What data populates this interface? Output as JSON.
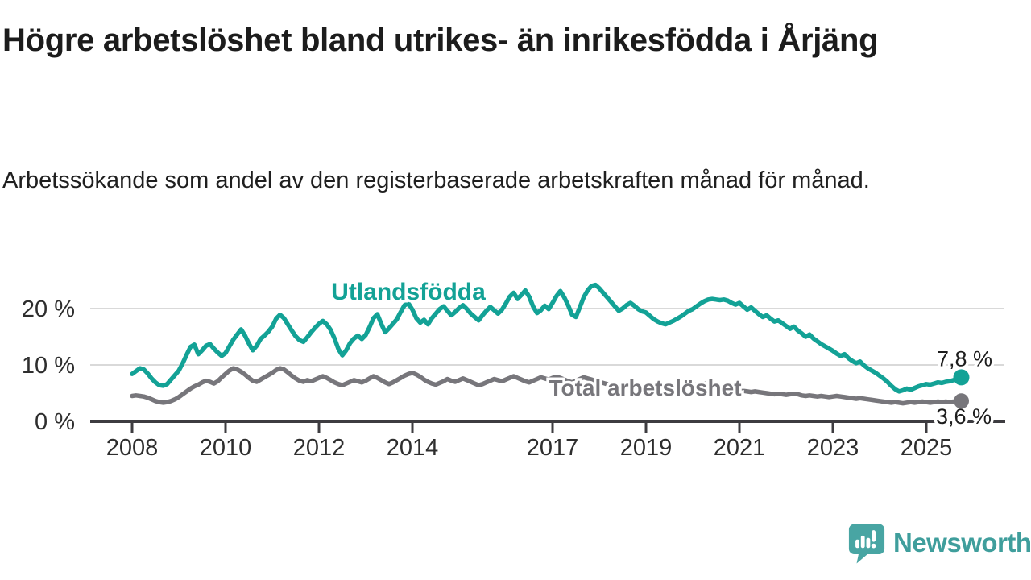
{
  "header": {
    "title": "Högre arbetslöshet bland utrikes- än inrikesfödda i Årjäng",
    "subtitle": "Arbetssökande som andel av den registerbaserade arbetskraften månad för månad."
  },
  "branding": {
    "logo_text": "Newsworthy",
    "logo_text_color": "#3f9e9c",
    "logo_icon_color": "#48a5a3"
  },
  "chart_data": {
    "type": "line",
    "unit": "%",
    "frequency": "monthly",
    "x_start_year": 2008,
    "x_end": "2025 (October)",
    "ylim": [
      0,
      26
    ],
    "grid": "horizontal",
    "x_ticks": [
      {
        "year": 2008,
        "label": "2008"
      },
      {
        "year": 2010,
        "label": "2010"
      },
      {
        "year": 2012,
        "label": "2012"
      },
      {
        "year": 2014,
        "label": "2014"
      },
      {
        "year": 2017,
        "label": "2017"
      },
      {
        "year": 2019,
        "label": "2019"
      },
      {
        "year": 2021,
        "label": "2021"
      },
      {
        "year": 2023,
        "label": "2023"
      },
      {
        "year": 2025,
        "label": "2025"
      }
    ],
    "y_ticks": [
      {
        "value": 0,
        "label": "0 %"
      },
      {
        "value": 10,
        "label": "10 %"
      },
      {
        "value": 20,
        "label": "20 %"
      }
    ],
    "series": [
      {
        "name": "Utlandsfödda",
        "color": "#13a296",
        "end_label": "7,8 %",
        "end_value": 7.8,
        "values": [
          8.4,
          8.9,
          9.4,
          9.2,
          8.5,
          7.6,
          6.9,
          6.4,
          6.3,
          6.6,
          7.4,
          8.2,
          9.0,
          10.3,
          11.8,
          13.2,
          13.6,
          11.9,
          12.6,
          13.4,
          13.7,
          12.9,
          12.2,
          11.6,
          12.1,
          13.3,
          14.5,
          15.4,
          16.3,
          15.2,
          13.8,
          12.6,
          13.4,
          14.6,
          15.2,
          15.9,
          16.8,
          18.2,
          18.9,
          18.3,
          17.2,
          16.1,
          15.1,
          14.4,
          14.1,
          14.9,
          15.8,
          16.6,
          17.3,
          17.8,
          17.2,
          16.2,
          14.7,
          12.8,
          11.7,
          12.6,
          13.9,
          14.7,
          15.2,
          14.6,
          15.3,
          16.7,
          18.3,
          19.0,
          17.3,
          15.8,
          16.5,
          17.3,
          18.1,
          19.4,
          20.6,
          20.9,
          19.8,
          18.3,
          17.5,
          18.0,
          17.2,
          18.3,
          19.1,
          19.9,
          20.4,
          19.6,
          18.8,
          19.4,
          20.1,
          20.6,
          19.9,
          19.1,
          18.5,
          17.9,
          18.8,
          19.6,
          20.3,
          19.7,
          19.1,
          19.8,
          20.9,
          22.1,
          22.8,
          21.7,
          22.4,
          23.2,
          22.1,
          20.4,
          19.2,
          19.7,
          20.5,
          19.9,
          21.0,
          22.2,
          23.1,
          22.0,
          20.6,
          18.9,
          18.5,
          20.2,
          22.0,
          23.2,
          24.0,
          24.2,
          23.6,
          22.8,
          22.0,
          21.2,
          20.4,
          19.6,
          20.0,
          20.6,
          21.0,
          20.5,
          19.9,
          19.5,
          19.3,
          18.7,
          18.1,
          17.7,
          17.4,
          17.2,
          17.5,
          17.8,
          18.2,
          18.6,
          19.1,
          19.6,
          19.9,
          20.4,
          20.9,
          21.3,
          21.6,
          21.7,
          21.6,
          21.5,
          21.6,
          21.4,
          21.0,
          20.7,
          21.0,
          20.4,
          19.8,
          20.2,
          19.6,
          19.0,
          18.5,
          18.8,
          18.2,
          17.7,
          17.9,
          17.4,
          16.9,
          16.4,
          16.8,
          16.1,
          15.6,
          15.0,
          15.4,
          14.7,
          14.2,
          13.7,
          13.3,
          12.9,
          12.5,
          12.0,
          11.6,
          11.9,
          11.2,
          10.7,
          10.3,
          10.6,
          9.9,
          9.4,
          9.0,
          8.6,
          8.1,
          7.6,
          7.0,
          6.3,
          5.7,
          5.3,
          5.5,
          5.8,
          5.6,
          5.9,
          6.2,
          6.4,
          6.6,
          6.5,
          6.7,
          6.9,
          6.8,
          7.0,
          7.1,
          7.3,
          7.5,
          7.8
        ]
      },
      {
        "name": "Total arbetslöshet",
        "color": "#77767b",
        "end_label": "3,6 %",
        "end_value": 3.6,
        "values": [
          4.5,
          4.6,
          4.5,
          4.4,
          4.2,
          3.9,
          3.6,
          3.4,
          3.3,
          3.4,
          3.6,
          3.9,
          4.3,
          4.8,
          5.3,
          5.8,
          6.2,
          6.5,
          6.9,
          7.2,
          7.0,
          6.7,
          7.1,
          7.8,
          8.4,
          9.0,
          9.4,
          9.2,
          8.8,
          8.3,
          7.7,
          7.2,
          7.0,
          7.4,
          7.8,
          8.2,
          8.6,
          9.1,
          9.4,
          9.2,
          8.7,
          8.1,
          7.6,
          7.2,
          7.0,
          7.3,
          7.1,
          7.4,
          7.7,
          8.0,
          7.7,
          7.3,
          6.9,
          6.6,
          6.4,
          6.7,
          7.0,
          7.3,
          7.1,
          6.9,
          7.2,
          7.6,
          8.0,
          7.7,
          7.3,
          6.9,
          6.6,
          6.9,
          7.3,
          7.7,
          8.1,
          8.4,
          8.6,
          8.3,
          7.9,
          7.4,
          7.0,
          6.7,
          6.5,
          6.8,
          7.1,
          7.5,
          7.2,
          7.0,
          7.3,
          7.6,
          7.3,
          7.0,
          6.7,
          6.4,
          6.6,
          6.9,
          7.2,
          7.5,
          7.3,
          7.1,
          7.4,
          7.7,
          8.0,
          7.7,
          7.4,
          7.1,
          6.9,
          7.2,
          7.5,
          7.8,
          7.6,
          7.4,
          7.7,
          7.9,
          7.7,
          7.4,
          7.1,
          6.9,
          7.2,
          7.5,
          7.8,
          7.6,
          7.4,
          7.2,
          7.0,
          6.8,
          6.6,
          6.4,
          6.3,
          6.2,
          6.4,
          6.6,
          6.8,
          6.6,
          6.4,
          6.3,
          6.2,
          6.1,
          6.0,
          5.9,
          6.0,
          5.9,
          5.8,
          5.9,
          6.0,
          6.1,
          6.2,
          6.3,
          6.4,
          6.5,
          6.6,
          6.7,
          6.8,
          6.7,
          6.5,
          6.3,
          6.1,
          5.9,
          5.7,
          5.6,
          5.5,
          5.4,
          5.3,
          5.2,
          5.3,
          5.2,
          5.1,
          5.0,
          4.9,
          4.8,
          4.9,
          4.8,
          4.7,
          4.8,
          4.9,
          4.8,
          4.6,
          4.5,
          4.6,
          4.5,
          4.4,
          4.5,
          4.4,
          4.3,
          4.4,
          4.5,
          4.4,
          4.3,
          4.2,
          4.1,
          4.0,
          4.1,
          4.0,
          3.9,
          3.8,
          3.7,
          3.6,
          3.5,
          3.4,
          3.3,
          3.4,
          3.3,
          3.2,
          3.3,
          3.4,
          3.3,
          3.4,
          3.5,
          3.4,
          3.3,
          3.4,
          3.5,
          3.4,
          3.5,
          3.4,
          3.5,
          3.5,
          3.6
        ]
      }
    ]
  }
}
